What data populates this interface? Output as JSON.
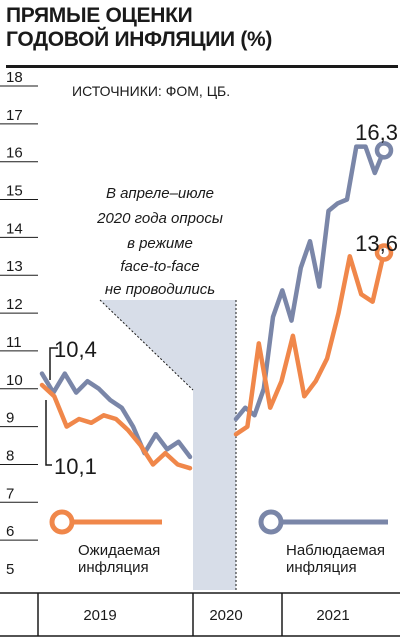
{
  "title_lines": [
    "ПРЯМЫЕ ОЦЕНКИ",
    "ГОДОВОЙ ИНФЛЯЦИИ (%)"
  ],
  "source": "ИСТОЧНИКИ: ФОМ, ЦБ.",
  "note_lines": [
    "В апреле–июле",
    "2020 года опросы",
    "в режиме",
    "face-to-face",
    "не проводились"
  ],
  "colors": {
    "expected": "#f0874a",
    "observed": "#7a86a8",
    "gap": "#d7dde8"
  },
  "chart_data": {
    "type": "line",
    "ylim": [
      5,
      18
    ],
    "yticks": [
      "5",
      "6",
      "7",
      "8",
      "9",
      "10",
      "11",
      "12",
      "13",
      "14",
      "15",
      "16",
      "17",
      "18"
    ],
    "x_labels": [
      "2019",
      "2020",
      "2021"
    ],
    "gap": "Apr–Jul 2020",
    "series": [
      {
        "name": "Ожидаемая инфляция",
        "segments": [
          [
            10.1,
            9.8,
            9.0,
            9.2,
            9.1,
            9.3,
            9.2,
            8.9,
            8.5,
            8.0,
            8.3,
            8.0,
            7.9
          ],
          [
            8.8,
            9.0,
            11.2,
            9.5,
            10.2,
            11.4,
            9.8,
            10.2,
            10.8,
            12.0,
            13.5,
            12.5,
            12.3,
            13.6
          ]
        ],
        "labels": {
          "start": "10,1",
          "end": "13,6"
        }
      },
      {
        "name": "Наблюдаемая инфляция",
        "segments": [
          [
            10.4,
            9.9,
            10.4,
            9.9,
            10.2,
            10.0,
            9.7,
            9.5,
            9.0,
            8.3,
            8.8,
            8.4,
            8.6,
            8.2
          ],
          [
            9.2,
            9.5,
            9.3,
            10.0,
            11.9,
            12.6,
            11.8,
            13.2,
            13.9,
            12.7,
            14.7,
            14.9,
            15.0,
            16.4,
            16.4,
            15.7,
            16.3
          ]
        ],
        "labels": {
          "start": "10,4",
          "end": "16,3"
        }
      }
    ]
  }
}
